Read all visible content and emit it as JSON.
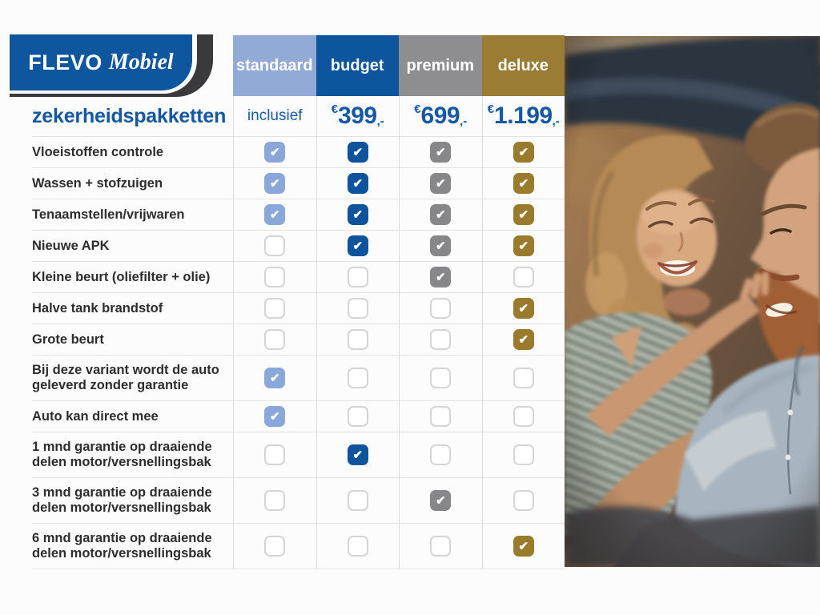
{
  "brand": {
    "name_primary": "FLEVO",
    "name_secondary": "Mobiel"
  },
  "table": {
    "title": "zekerheidspakketten",
    "currency_symbol": "€",
    "price_suffix": ",-",
    "check_glyph": "✔",
    "columns": [
      {
        "label": "standaard",
        "price_text": "inclusief",
        "color": "#92abd6",
        "check_color": "#8aa7d9"
      },
      {
        "label": "budget",
        "price_amount": "399",
        "color": "#0d569e",
        "check_color": "#0d549c"
      },
      {
        "label": "premium",
        "price_amount": "699",
        "color": "#8e8e90",
        "check_color": "#87878a"
      },
      {
        "label": "deluxe",
        "price_amount": "1.199",
        "color": "#9a7c34",
        "check_color": "#9a7b2e"
      }
    ],
    "rows": [
      {
        "label": "Vloeistoffen controle",
        "checks": [
          1,
          1,
          1,
          1
        ],
        "tall": false
      },
      {
        "label": "Wassen + stofzuigen",
        "checks": [
          1,
          1,
          1,
          1
        ],
        "tall": false
      },
      {
        "label": "Tenaamstellen/vrijwaren",
        "checks": [
          1,
          1,
          1,
          1
        ],
        "tall": false
      },
      {
        "label": "Nieuwe APK",
        "checks": [
          0,
          1,
          1,
          1
        ],
        "tall": false
      },
      {
        "label": "Kleine beurt (oliefilter + olie)",
        "checks": [
          0,
          0,
          1,
          0
        ],
        "tall": false
      },
      {
        "label": "Halve tank brandstof",
        "checks": [
          0,
          0,
          0,
          1
        ],
        "tall": false
      },
      {
        "label": "Grote beurt",
        "checks": [
          0,
          0,
          0,
          1
        ],
        "tall": false
      },
      {
        "label": "Bij deze variant wordt de auto geleverd zonder garantie",
        "checks": [
          1,
          0,
          0,
          0
        ],
        "tall": true
      },
      {
        "label": "Auto kan direct mee",
        "checks": [
          1,
          0,
          0,
          0
        ],
        "tall": false
      },
      {
        "label": "1 mnd garantie op draaiende delen motor/versnellingsbak",
        "checks": [
          0,
          1,
          0,
          0
        ],
        "tall": true
      },
      {
        "label": "3 mnd garantie op draaiende delen motor/versnellingsbak",
        "checks": [
          0,
          0,
          1,
          0
        ],
        "tall": true
      },
      {
        "label": "6 mnd garantie op draaiende delen motor/versnellingsbak",
        "checks": [
          0,
          0,
          0,
          1
        ],
        "tall": true
      }
    ]
  }
}
